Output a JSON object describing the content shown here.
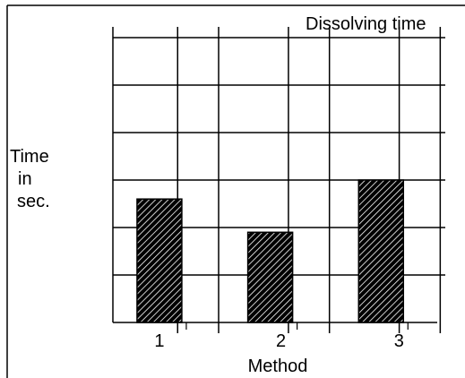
{
  "chart_data": {
    "type": "bar",
    "title": "Dissolving time",
    "xlabel": "Method",
    "ylabel_lines": [
      "Time",
      "in",
      "sec."
    ],
    "categories": [
      "1",
      "2",
      "3"
    ],
    "values": [
      2.6,
      1.9,
      3.0
    ],
    "ylim": [
      0,
      6
    ],
    "grid": true,
    "bar_fill": "diagonal-hatch",
    "colors": {
      "bar_fill": "#000000",
      "hatch": "#ffffff",
      "line": "#000000"
    }
  }
}
